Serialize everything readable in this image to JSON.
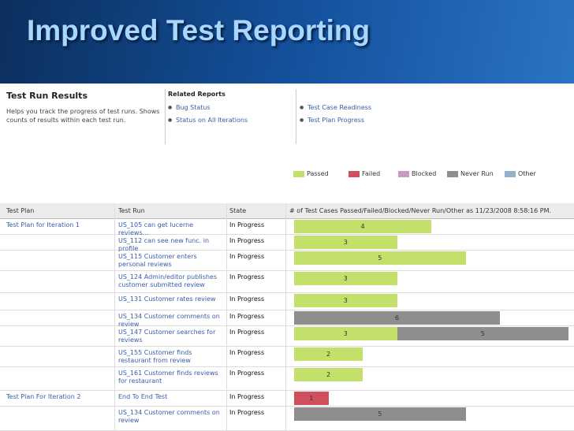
{
  "slide_title": "Improved Test Reporting",
  "report": {
    "title": "Test Run Results",
    "description": "Helps you track the progress of test runs. Shows counts of results within each test run.",
    "related_heading": "Related Reports",
    "related": [
      "Bug Status",
      "Status on All Iterations",
      "Test Case Readiness",
      "Test Plan Progress"
    ],
    "legend": [
      {
        "name": "Passed",
        "color": "#c3e16a"
      },
      {
        "name": "Failed",
        "color": "#d0505e"
      },
      {
        "name": "Blocked",
        "color": "#c79bbb"
      },
      {
        "name": "Never Run",
        "color": "#8e8e8e"
      },
      {
        "name": "Other",
        "color": "#94b2cc"
      }
    ],
    "columns": [
      "Test Plan",
      "Test Run",
      "State",
      "# of Test Cases Passed/Failed/Blocked/Never Run/Other as 11/23/2008 8:58:16 PM."
    ],
    "rows": [
      {
        "plan": "Test Plan for Iteration 1",
        "run": "US_105 can get lucerne reviews...",
        "state": "In Progress",
        "counts": [
          4,
          0,
          0,
          0,
          0
        ]
      },
      {
        "plan": null,
        "run": "US_112 can see new func. in profile",
        "state": "In Progress",
        "counts": [
          3,
          0,
          0,
          0,
          0
        ]
      },
      {
        "plan": null,
        "run": "US_115 Customer enters personal reviews",
        "state": "In Progress",
        "counts": [
          5,
          0,
          0,
          0,
          0
        ]
      },
      {
        "plan": null,
        "run": "US_124 Admin/editor publishes customer submitted review",
        "state": "In Progress",
        "counts": [
          3,
          0,
          0,
          0,
          0
        ]
      },
      {
        "plan": null,
        "run": "US_131 Customer rates review",
        "state": "In Progress",
        "counts": [
          3,
          0,
          0,
          0,
          0
        ]
      },
      {
        "plan": null,
        "run": "US_134 Customer comments on review",
        "state": "In Progress",
        "counts": [
          0,
          0,
          0,
          6,
          0
        ]
      },
      {
        "plan": null,
        "run": "US_147 Customer searches for reviews",
        "state": "In Progress",
        "counts": [
          3,
          0,
          0,
          5,
          0
        ]
      },
      {
        "plan": null,
        "run": "US_155 Customer finds restaurant from review",
        "state": "In Progress",
        "counts": [
          2,
          0,
          0,
          0,
          0
        ]
      },
      {
        "plan": null,
        "run": "US_161 Customer finds reviews for restaurant",
        "state": "In Progress",
        "counts": [
          2,
          0,
          0,
          0,
          0
        ]
      },
      {
        "plan": "Test Plan For Iteration 2",
        "run": "End To End Test",
        "state": "In Progress",
        "counts": [
          0,
          1,
          0,
          0,
          0
        ]
      },
      {
        "plan": null,
        "run": "US_134 Customer comments on review",
        "state": "In Progress",
        "counts": [
          0,
          0,
          0,
          5,
          0
        ]
      }
    ]
  }
}
